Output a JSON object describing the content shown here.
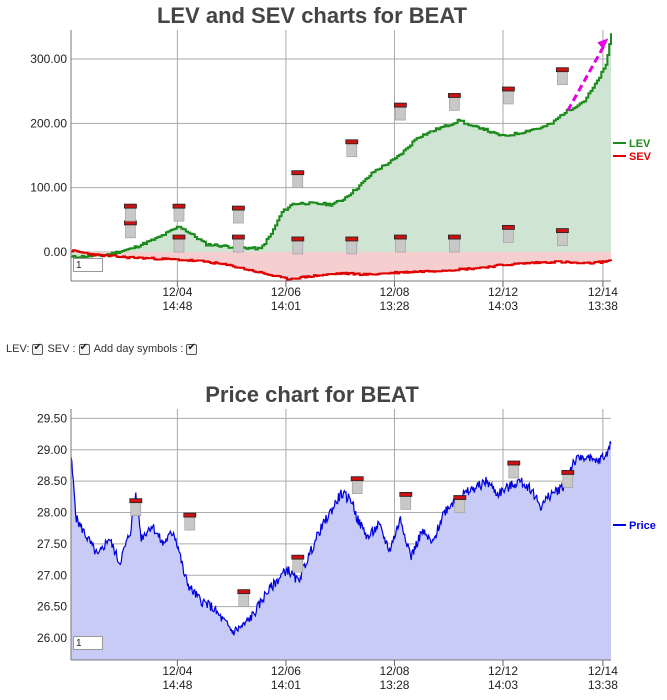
{
  "controls": {
    "lev_label": "LEV:",
    "sev_label": "SEV :",
    "day_symbols_label": "Add day symbols :"
  },
  "colors": {
    "lev": "#1a8a1a",
    "sev": "#e00000",
    "price": "#0000dd",
    "arrow": "#e600e6",
    "lev_fill": "#cfe4d2",
    "sev_fill": "#f5cfd0",
    "price_fill": "#c8cbf5"
  },
  "chart_data": [
    {
      "type": "line",
      "title": "LEV and SEV charts for BEAT",
      "ylim": [
        -45,
        345
      ],
      "y_ticks": [
        "0.00",
        "100.00",
        "200.00",
        "300.00"
      ],
      "y_tick_values": [
        0,
        100,
        200,
        300
      ],
      "x_ticks": [
        {
          "date": "12/04",
          "time": "14:48",
          "pos": 0.197
        },
        {
          "date": "12/06",
          "time": "14:01",
          "pos": 0.398
        },
        {
          "date": "12/08",
          "time": "13:28",
          "pos": 0.599
        },
        {
          "date": "12/12",
          "time": "14:03",
          "pos": 0.8
        },
        {
          "date": "12/14",
          "time": "13:38",
          "pos": 0.985
        }
      ],
      "grid": true,
      "legend_position": "right",
      "zoom_value": "1",
      "series": [
        {
          "name": "LEV",
          "color": "#1a8a1a",
          "x": [
            0,
            0.06,
            0.11,
            0.16,
            0.2,
            0.25,
            0.3,
            0.35,
            0.37,
            0.39,
            0.41,
            0.43,
            0.46,
            0.48,
            0.5,
            0.53,
            0.56,
            0.58,
            0.6,
            0.62,
            0.64,
            0.66,
            0.68,
            0.7,
            0.72,
            0.74,
            0.76,
            0.78,
            0.8,
            0.83,
            0.85,
            0.87,
            0.89,
            0.91,
            0.93,
            0.95,
            0.97,
            0.99,
            1.0
          ],
          "values": [
            -8,
            -5,
            5,
            22,
            40,
            12,
            8,
            5,
            28,
            62,
            75,
            76,
            75,
            74,
            80,
            100,
            125,
            135,
            145,
            160,
            178,
            185,
            192,
            198,
            205,
            195,
            193,
            185,
            180,
            185,
            190,
            193,
            200,
            215,
            225,
            235,
            260,
            290,
            340
          ]
        },
        {
          "name": "SEV",
          "color": "#e00000",
          "x": [
            0,
            0.05,
            0.1,
            0.15,
            0.2,
            0.25,
            0.3,
            0.35,
            0.4,
            0.45,
            0.5,
            0.55,
            0.6,
            0.65,
            0.7,
            0.75,
            0.8,
            0.85,
            0.9,
            0.95,
            1.0
          ],
          "values": [
            2,
            -5,
            -8,
            -10,
            -12,
            -15,
            -22,
            -32,
            -42,
            -37,
            -33,
            -35,
            -32,
            -30,
            -28,
            -25,
            -20,
            -17,
            -15,
            -18,
            -14
          ]
        }
      ],
      "markers": [
        {
          "x": 0.11,
          "y": 22
        },
        {
          "x": 0.11,
          "y": 48
        },
        {
          "x": 0.2,
          "y": 0
        },
        {
          "x": 0.2,
          "y": 48
        },
        {
          "x": 0.31,
          "y": 45
        },
        {
          "x": 0.31,
          "y": 0
        },
        {
          "x": 0.42,
          "y": 100
        },
        {
          "x": 0.42,
          "y": -3
        },
        {
          "x": 0.52,
          "y": 148
        },
        {
          "x": 0.52,
          "y": -3
        },
        {
          "x": 0.61,
          "y": 205
        },
        {
          "x": 0.61,
          "y": 0
        },
        {
          "x": 0.71,
          "y": 220
        },
        {
          "x": 0.71,
          "y": 0
        },
        {
          "x": 0.81,
          "y": 230
        },
        {
          "x": 0.81,
          "y": 15
        },
        {
          "x": 0.91,
          "y": 260
        },
        {
          "x": 0.91,
          "y": 10
        }
      ]
    },
    {
      "type": "line",
      "title": "Price chart for BEAT",
      "ylim": [
        25.65,
        29.65
      ],
      "y_ticks": [
        "26.00",
        "26.50",
        "27.00",
        "27.50",
        "28.00",
        "28.50",
        "29.00",
        "29.50"
      ],
      "y_tick_values": [
        26,
        26.5,
        27,
        27.5,
        28,
        28.5,
        29,
        29.5
      ],
      "x_ticks": [
        {
          "date": "12/04",
          "time": "14:48",
          "pos": 0.197
        },
        {
          "date": "12/06",
          "time": "14:01",
          "pos": 0.398
        },
        {
          "date": "12/08",
          "time": "13:28",
          "pos": 0.599
        },
        {
          "date": "12/12",
          "time": "14:03",
          "pos": 0.8
        },
        {
          "date": "12/14",
          "time": "13:38",
          "pos": 0.985
        }
      ],
      "grid": true,
      "legend_position": "right",
      "zoom_value": "1",
      "series": [
        {
          "name": "Price",
          "color": "#0000dd",
          "x": [
            0,
            0.01,
            0.03,
            0.05,
            0.07,
            0.09,
            0.11,
            0.12,
            0.13,
            0.15,
            0.17,
            0.19,
            0.2,
            0.21,
            0.22,
            0.24,
            0.26,
            0.28,
            0.3,
            0.32,
            0.34,
            0.36,
            0.38,
            0.4,
            0.42,
            0.44,
            0.46,
            0.48,
            0.5,
            0.52,
            0.53,
            0.55,
            0.57,
            0.59,
            0.61,
            0.63,
            0.65,
            0.67,
            0.69,
            0.71,
            0.73,
            0.75,
            0.77,
            0.79,
            0.81,
            0.83,
            0.85,
            0.87,
            0.89,
            0.91,
            0.93,
            0.95,
            0.97,
            0.99,
            1.0
          ],
          "values": [
            28.9,
            27.9,
            27.6,
            27.3,
            27.6,
            27.2,
            27.7,
            28.3,
            27.6,
            27.8,
            27.5,
            27.7,
            27.4,
            27.0,
            26.8,
            26.6,
            26.5,
            26.3,
            26.1,
            26.2,
            26.4,
            26.7,
            26.9,
            27.1,
            26.9,
            27.3,
            27.7,
            28.0,
            28.3,
            28.2,
            27.9,
            27.6,
            27.8,
            27.4,
            27.9,
            27.3,
            27.7,
            27.5,
            28.0,
            28.2,
            28.3,
            28.4,
            28.5,
            28.3,
            28.4,
            28.5,
            28.4,
            28.1,
            28.3,
            28.4,
            28.8,
            28.9,
            28.8,
            28.9,
            29.1
          ]
        }
      ],
      "markers": [
        {
          "x": 0.12,
          "y": 27.95
        },
        {
          "x": 0.22,
          "y": 27.72
        },
        {
          "x": 0.32,
          "y": 26.5
        },
        {
          "x": 0.42,
          "y": 27.05
        },
        {
          "x": 0.53,
          "y": 28.3
        },
        {
          "x": 0.62,
          "y": 28.05
        },
        {
          "x": 0.72,
          "y": 28.0
        },
        {
          "x": 0.82,
          "y": 28.55
        },
        {
          "x": 0.92,
          "y": 28.4
        }
      ]
    }
  ]
}
